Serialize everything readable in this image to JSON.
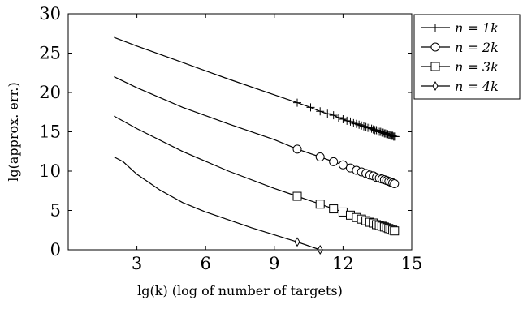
{
  "chart_data": {
    "type": "line",
    "title": "",
    "xlabel": "lg(k) (log of number of targets)",
    "ylabel": "lg(approx. err.)",
    "xlim": [
      0,
      15
    ],
    "ylim": [
      0,
      30
    ],
    "xticks": [
      3,
      6,
      9,
      12,
      15
    ],
    "yticks": [
      0,
      5,
      10,
      15,
      20,
      25,
      30
    ],
    "grid": false,
    "legend_position": "top-right, outside plot area",
    "series": [
      {
        "name": "n = 1k",
        "marker": "plus",
        "x": [
          2.0,
          3.0,
          5.0,
          7.0,
          9.0,
          10.0,
          10.585,
          11.0,
          11.322,
          11.585,
          11.807,
          12.0,
          12.17,
          12.322,
          12.459,
          12.585,
          12.7,
          12.807,
          12.907,
          13.0,
          13.087,
          13.17,
          13.248,
          13.322,
          13.392,
          13.459,
          13.524,
          13.585,
          13.644,
          13.7,
          13.755,
          13.807,
          13.858,
          13.907,
          13.954,
          14.0,
          14.044,
          14.087,
          14.129,
          14.17,
          14.209,
          14.248,
          14.286
        ],
        "y": [
          27.0,
          25.9,
          23.8,
          21.7,
          19.7,
          18.7,
          18.1,
          17.6,
          17.3,
          17.1,
          16.8,
          16.6,
          16.4,
          16.3,
          16.1,
          16.0,
          15.9,
          15.8,
          15.7,
          15.6,
          15.5,
          15.5,
          15.4,
          15.3,
          15.2,
          15.2,
          15.1,
          15.0,
          15.0,
          14.9,
          14.9,
          14.8,
          14.8,
          14.7,
          14.7,
          14.6,
          14.6,
          14.5,
          14.5,
          14.5,
          14.4,
          14.4,
          14.4
        ]
      },
      {
        "name": "n = 2k",
        "marker": "circle",
        "x": [
          2.0,
          3.0,
          5.0,
          7.0,
          9.0,
          10.0,
          11.0,
          11.585,
          12.0,
          12.322,
          12.585,
          12.807,
          13.0,
          13.17,
          13.322,
          13.459,
          13.585,
          13.7,
          13.807,
          13.907,
          14.0,
          14.087,
          14.17,
          14.248
        ],
        "y": [
          22.0,
          20.6,
          18.1,
          16.0,
          14.0,
          12.8,
          11.8,
          11.2,
          10.8,
          10.4,
          10.1,
          9.9,
          9.7,
          9.5,
          9.4,
          9.2,
          9.1,
          9.0,
          8.9,
          8.8,
          8.7,
          8.6,
          8.5,
          8.4
        ]
      },
      {
        "name": "n = 3k",
        "marker": "square",
        "x": [
          2.0,
          3.0,
          5.0,
          7.0,
          9.0,
          10.0,
          11.0,
          11.585,
          12.0,
          12.322,
          12.585,
          12.807,
          13.0,
          13.17,
          13.322,
          13.459,
          13.585,
          13.7,
          13.807,
          13.907,
          14.0,
          14.087,
          14.17,
          14.248
        ],
        "y": [
          17.0,
          15.4,
          12.5,
          10.0,
          7.8,
          6.8,
          5.8,
          5.2,
          4.8,
          4.4,
          4.1,
          3.9,
          3.7,
          3.5,
          3.4,
          3.2,
          3.1,
          3.0,
          2.9,
          2.8,
          2.7,
          2.6,
          2.5,
          2.4
        ]
      },
      {
        "name": "n = 4k",
        "marker": "diamond",
        "x": [
          2.0,
          2.4,
          3.0,
          4.0,
          5.0,
          6.0,
          7.0,
          8.0,
          9.0,
          10.0,
          11.0
        ],
        "y": [
          11.8,
          11.2,
          9.6,
          7.6,
          6.0,
          4.8,
          3.8,
          2.8,
          1.9,
          1.0,
          0.0
        ]
      }
    ],
    "marker_start_index": [
      5,
      5,
      5,
      9
    ]
  }
}
